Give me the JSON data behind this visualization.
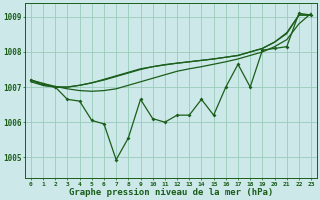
{
  "title": "Graphe pression niveau de la mer (hPa)",
  "bg_color": "#cce8e8",
  "grid_color": "#99ccbb",
  "line_color": "#1a5e1a",
  "x_labels": [
    "0",
    "1",
    "2",
    "3",
    "4",
    "5",
    "6",
    "7",
    "8",
    "9",
    "10",
    "11",
    "12",
    "13",
    "14",
    "15",
    "16",
    "17",
    "18",
    "19",
    "20",
    "21",
    "22",
    "23"
  ],
  "ylim": [
    1004.4,
    1009.4
  ],
  "yticks": [
    1005,
    1006,
    1007,
    1008,
    1009
  ],
  "main_data": [
    1007.2,
    1007.1,
    1007.0,
    1006.65,
    1006.6,
    1006.05,
    1005.95,
    1004.93,
    1005.55,
    1006.65,
    1006.1,
    1006.0,
    1006.2,
    1006.2,
    1006.65,
    1006.2,
    1007.0,
    1007.65,
    1007.0,
    1008.05,
    1008.1,
    1008.15,
    1009.1,
    1009.05
  ],
  "line_straight": [
    1007.2,
    1007.1,
    1007.02,
    1006.95,
    1006.9,
    1006.88,
    1006.9,
    1006.95,
    1007.05,
    1007.15,
    1007.25,
    1007.35,
    1007.45,
    1007.52,
    1007.58,
    1007.65,
    1007.72,
    1007.8,
    1007.9,
    1008.0,
    1008.15,
    1008.35,
    1008.8,
    1009.1
  ],
  "line_med1": [
    1007.2,
    1007.05,
    1007.0,
    1007.0,
    1007.05,
    1007.12,
    1007.2,
    1007.3,
    1007.4,
    1007.5,
    1007.58,
    1007.63,
    1007.68,
    1007.72,
    1007.76,
    1007.8,
    1007.85,
    1007.9,
    1008.0,
    1008.1,
    1008.28,
    1008.55,
    1009.05,
    1009.05
  ],
  "line_med2": [
    1007.15,
    1007.05,
    1007.0,
    1007.0,
    1007.05,
    1007.12,
    1007.22,
    1007.32,
    1007.42,
    1007.52,
    1007.58,
    1007.64,
    1007.68,
    1007.72,
    1007.76,
    1007.8,
    1007.85,
    1007.9,
    1008.0,
    1008.1,
    1008.28,
    1008.52,
    1009.05,
    1009.05
  ]
}
